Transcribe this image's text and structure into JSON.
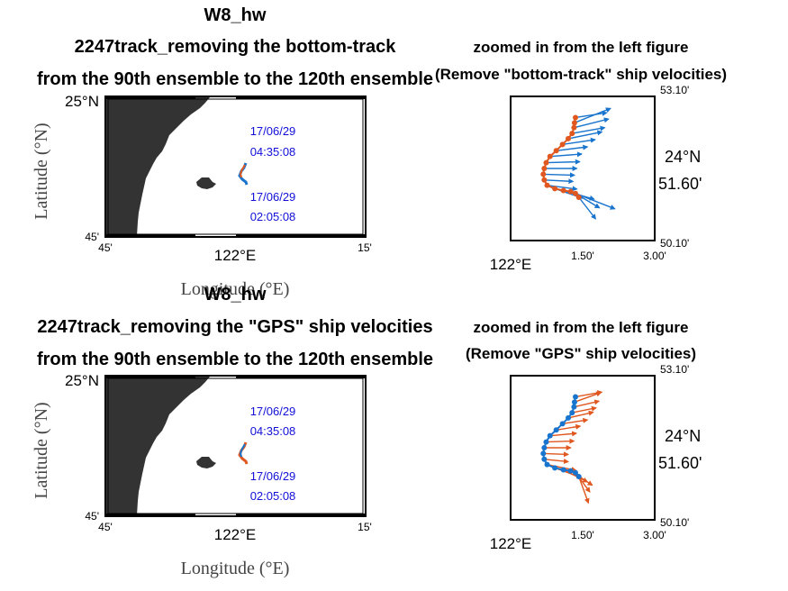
{
  "colors": {
    "land": "#333333",
    "blue": "#1874cd",
    "orange": "#e0571f",
    "annot": "#1010d8"
  },
  "chart_data": [
    {
      "type": "map-track",
      "title_lines": [
        "W8_hw",
        "2247track_removing the bottom-track",
        "from the 90th ensemble to the 120th ensemble"
      ],
      "xlabel": "Longitude (°E)",
      "ylabel": "Latitude (°N)",
      "y_ticks": {
        "top": "25°N",
        "bottom": "45'"
      },
      "x_ticks": {
        "left": "45'",
        "mid": "122°E",
        "right": "15'"
      },
      "annotations": [
        {
          "date": "17/06/29",
          "time": "04:35:08"
        },
        {
          "date": "17/06/29",
          "time": "02:05:08"
        }
      ]
    },
    {
      "type": "vector",
      "title_lines": [
        "zoomed in from the left figure",
        "(Remove \"bottom-track\" ship velocities)"
      ],
      "y_ticks": {
        "top": "53.10'",
        "mid_deg": "24°N",
        "mid_min": "51.60'",
        "bottom": "50.10'"
      },
      "x_ticks": {
        "left": "122°E",
        "mid": "1.50'",
        "right": "3.00'"
      },
      "xlim": [
        0,
        3.0
      ],
      "ylim": [
        50.1,
        53.1
      ],
      "track_color": "orange",
      "arrow_color": "blue",
      "track": [
        [
          1.35,
          52.66
        ],
        [
          1.33,
          52.55
        ],
        [
          1.32,
          52.45
        ],
        [
          1.28,
          52.33
        ],
        [
          1.2,
          52.22
        ],
        [
          1.08,
          52.1
        ],
        [
          0.95,
          51.97
        ],
        [
          0.82,
          51.85
        ],
        [
          0.74,
          51.72
        ],
        [
          0.7,
          51.6
        ],
        [
          0.68,
          51.48
        ],
        [
          0.7,
          51.36
        ],
        [
          0.76,
          51.25
        ],
        [
          0.92,
          51.18
        ],
        [
          1.1,
          51.14
        ],
        [
          1.25,
          51.12
        ],
        [
          1.35,
          51.08
        ],
        [
          1.42,
          51.0
        ]
      ],
      "vectors": [
        [
          0.65,
          0.1
        ],
        [
          0.75,
          0.3
        ],
        [
          0.72,
          0.18
        ],
        [
          0.68,
          0.12
        ],
        [
          0.7,
          0.14
        ],
        [
          0.68,
          0.1
        ],
        [
          0.65,
          0.08
        ],
        [
          0.66,
          0.05
        ],
        [
          0.7,
          0.02
        ],
        [
          0.68,
          0.0
        ],
        [
          0.65,
          -0.02
        ],
        [
          0.6,
          -0.03
        ],
        [
          0.62,
          -0.08
        ],
        [
          0.58,
          -0.2
        ],
        [
          0.64,
          -0.18
        ],
        [
          0.92,
          -0.36
        ],
        [
          0.5,
          -0.3
        ],
        [
          0.35,
          -0.45
        ]
      ]
    },
    {
      "type": "map-track",
      "title_lines": [
        "W8_hw",
        "2247track_removing the \"GPS\" ship velocities",
        "from the 90th ensemble to the 120th ensemble"
      ],
      "xlabel": "Longitude (°E)",
      "ylabel": "Latitude (°N)",
      "y_ticks": {
        "top": "25°N",
        "bottom": "45'"
      },
      "x_ticks": {
        "left": "45'",
        "mid": "122°E",
        "right": "15'"
      },
      "annotations": [
        {
          "date": "17/06/29",
          "time": "04:35:08"
        },
        {
          "date": "17/06/29",
          "time": "02:05:08"
        }
      ]
    },
    {
      "type": "vector",
      "title_lines": [
        "zoomed in from the left figure",
        "(Remove \"GPS\" ship velocities)"
      ],
      "y_ticks": {
        "top": "53.10'",
        "mid_deg": "24°N",
        "mid_min": "51.60'",
        "bottom": "50.10'"
      },
      "x_ticks": {
        "left": "122°E",
        "mid": "1.50'",
        "right": "3.00'"
      },
      "xlim": [
        0,
        3.0
      ],
      "ylim": [
        50.1,
        53.1
      ],
      "track_color": "blue",
      "arrow_color": "orange",
      "track": [
        [
          1.35,
          52.66
        ],
        [
          1.33,
          52.55
        ],
        [
          1.32,
          52.45
        ],
        [
          1.28,
          52.33
        ],
        [
          1.2,
          52.22
        ],
        [
          1.08,
          52.1
        ],
        [
          0.95,
          51.97
        ],
        [
          0.82,
          51.85
        ],
        [
          0.74,
          51.72
        ],
        [
          0.7,
          51.6
        ],
        [
          0.68,
          51.48
        ],
        [
          0.7,
          51.36
        ],
        [
          0.76,
          51.25
        ],
        [
          0.92,
          51.18
        ],
        [
          1.1,
          51.14
        ],
        [
          1.25,
          51.12
        ],
        [
          1.35,
          51.08
        ],
        [
          1.42,
          51.0
        ]
      ],
      "vectors": [
        [
          0.55,
          0.1
        ],
        [
          0.55,
          0.2
        ],
        [
          0.52,
          0.12
        ],
        [
          0.5,
          0.1
        ],
        [
          0.52,
          0.12
        ],
        [
          0.52,
          0.08
        ],
        [
          0.5,
          0.08
        ],
        [
          0.55,
          0.05
        ],
        [
          0.58,
          0.02
        ],
        [
          0.55,
          0.0
        ],
        [
          0.52,
          -0.02
        ],
        [
          0.5,
          -0.05
        ],
        [
          0.6,
          -0.12
        ],
        [
          0.55,
          -0.2
        ],
        [
          0.5,
          -0.25
        ],
        [
          0.45,
          -0.3
        ],
        [
          0.3,
          -0.4
        ],
        [
          0.2,
          -0.55
        ]
      ]
    }
  ]
}
